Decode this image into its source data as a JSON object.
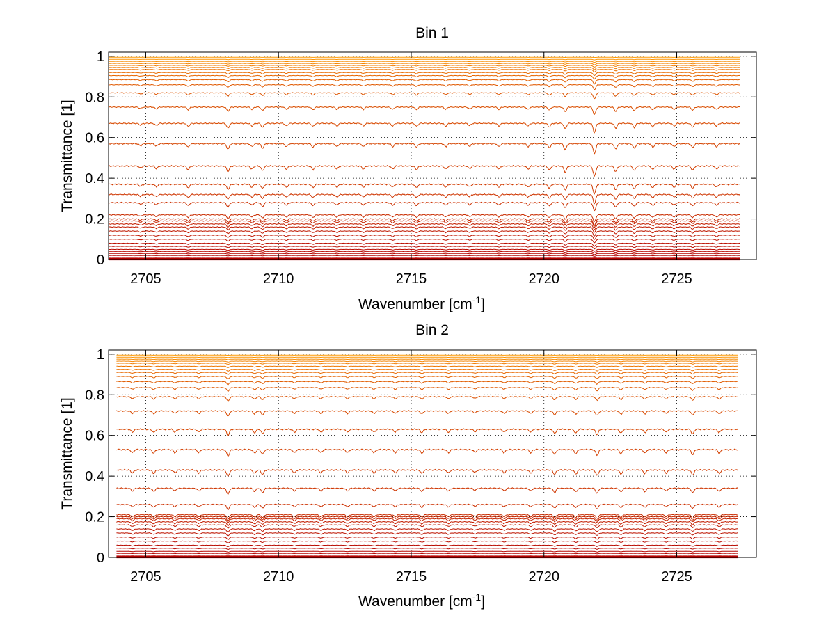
{
  "chart_data": [
    {
      "type": "line",
      "title": "Bin 1",
      "xlabel": "Wavenumber [cm",
      "xlabel_superscript": "-1",
      "xlabel_suffix": "]",
      "ylabel": "Transmittance [1]",
      "xlim": [
        2703.6,
        2728.0
      ],
      "ylim": [
        0,
        1.02
      ],
      "x_start": 2703.6,
      "x_end": 2727.4,
      "xticks": [
        2705,
        2710,
        2715,
        2720,
        2725
      ],
      "yticks": [
        0,
        0.2,
        0.4,
        0.6,
        0.8,
        1
      ],
      "ytick_labels": [
        "0",
        "0.2",
        "0.4",
        "0.6",
        "0.8",
        "1"
      ],
      "grid": true,
      "legend": false,
      "color_low": "#b40000",
      "color_high": "#ff9900",
      "series_levels": [
        0.0,
        0.005,
        0.012,
        0.02,
        0.03,
        0.04,
        0.05,
        0.065,
        0.08,
        0.1,
        0.12,
        0.14,
        0.16,
        0.175,
        0.19,
        0.2,
        0.22,
        0.28,
        0.32,
        0.37,
        0.46,
        0.57,
        0.67,
        0.75,
        0.82,
        0.86,
        0.885,
        0.905,
        0.92,
        0.935,
        0.945,
        0.955,
        0.965,
        0.975,
        0.985,
        0.995
      ],
      "absorption_lines": [
        {
          "x": 2704.8,
          "depth": 0.2
        },
        {
          "x": 2705.4,
          "depth": 0.25
        },
        {
          "x": 2706.6,
          "depth": 0.35
        },
        {
          "x": 2708.1,
          "depth": 0.55
        },
        {
          "x": 2709.0,
          "depth": 0.3
        },
        {
          "x": 2709.4,
          "depth": 0.45
        },
        {
          "x": 2710.3,
          "depth": 0.3
        },
        {
          "x": 2711.3,
          "depth": 0.35
        },
        {
          "x": 2712.2,
          "depth": 0.3
        },
        {
          "x": 2713.2,
          "depth": 0.3
        },
        {
          "x": 2714.3,
          "depth": 0.3
        },
        {
          "x": 2715.2,
          "depth": 0.35
        },
        {
          "x": 2716.3,
          "depth": 0.3
        },
        {
          "x": 2717.2,
          "depth": 0.25
        },
        {
          "x": 2718.3,
          "depth": 0.3
        },
        {
          "x": 2719.4,
          "depth": 0.3
        },
        {
          "x": 2720.2,
          "depth": 0.4
        },
        {
          "x": 2720.8,
          "depth": 0.6
        },
        {
          "x": 2721.9,
          "depth": 1.0
        },
        {
          "x": 2722.7,
          "depth": 0.55
        },
        {
          "x": 2723.4,
          "depth": 0.45
        },
        {
          "x": 2724.1,
          "depth": 0.35
        },
        {
          "x": 2724.9,
          "depth": 0.3
        },
        {
          "x": 2725.6,
          "depth": 0.4
        },
        {
          "x": 2726.5,
          "depth": 0.3
        }
      ]
    },
    {
      "type": "line",
      "title": "Bin 2",
      "xlabel": "Wavenumber [cm",
      "xlabel_superscript": "-1",
      "xlabel_suffix": "]",
      "ylabel": "Transmittance [1]",
      "xlim": [
        2703.6,
        2728.0
      ],
      "ylim": [
        0,
        1.02
      ],
      "x_start": 2703.9,
      "x_end": 2727.3,
      "xticks": [
        2705,
        2710,
        2715,
        2720,
        2725
      ],
      "yticks": [
        0,
        0.2,
        0.4,
        0.6,
        0.8,
        1
      ],
      "ytick_labels": [
        "0",
        "0.2",
        "0.4",
        "0.6",
        "0.8",
        "1"
      ],
      "grid": true,
      "legend": false,
      "color_low": "#b40000",
      "color_high": "#ff9900",
      "series_levels": [
        0.0,
        0.005,
        0.012,
        0.02,
        0.03,
        0.045,
        0.06,
        0.08,
        0.1,
        0.12,
        0.14,
        0.16,
        0.175,
        0.19,
        0.2,
        0.21,
        0.26,
        0.34,
        0.43,
        0.53,
        0.63,
        0.72,
        0.79,
        0.835,
        0.865,
        0.89,
        0.91,
        0.925,
        0.94,
        0.955,
        0.965,
        0.975,
        0.985,
        0.995
      ],
      "absorption_lines": [
        {
          "x": 2704.5,
          "depth": 0.3
        },
        {
          "x": 2705.3,
          "depth": 0.35
        },
        {
          "x": 2706.1,
          "depth": 0.3
        },
        {
          "x": 2707.0,
          "depth": 0.3
        },
        {
          "x": 2708.1,
          "depth": 0.65
        },
        {
          "x": 2709.1,
          "depth": 0.35
        },
        {
          "x": 2709.4,
          "depth": 0.45
        },
        {
          "x": 2710.6,
          "depth": 0.3
        },
        {
          "x": 2711.6,
          "depth": 0.3
        },
        {
          "x": 2712.6,
          "depth": 0.3
        },
        {
          "x": 2713.6,
          "depth": 0.3
        },
        {
          "x": 2714.4,
          "depth": 0.3
        },
        {
          "x": 2715.4,
          "depth": 0.35
        },
        {
          "x": 2716.4,
          "depth": 0.3
        },
        {
          "x": 2717.4,
          "depth": 0.25
        },
        {
          "x": 2718.5,
          "depth": 0.3
        },
        {
          "x": 2719.5,
          "depth": 0.3
        },
        {
          "x": 2720.4,
          "depth": 0.45
        },
        {
          "x": 2721.2,
          "depth": 0.4
        },
        {
          "x": 2722.0,
          "depth": 0.55
        },
        {
          "x": 2722.9,
          "depth": 0.4
        },
        {
          "x": 2723.8,
          "depth": 0.35
        },
        {
          "x": 2724.6,
          "depth": 0.3
        },
        {
          "x": 2725.6,
          "depth": 0.5
        },
        {
          "x": 2726.6,
          "depth": 0.35
        }
      ]
    }
  ]
}
